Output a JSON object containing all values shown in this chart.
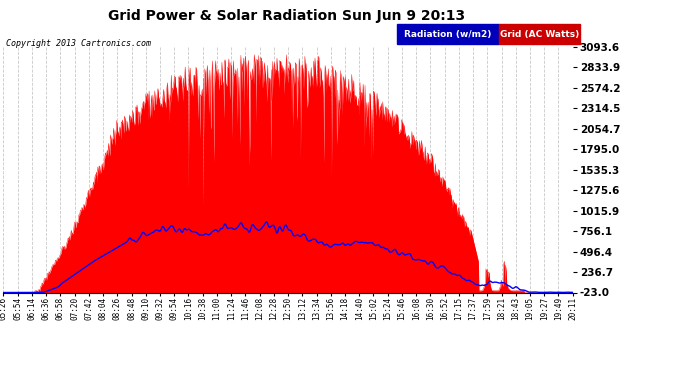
{
  "title": "Grid Power & Solar Radiation Sun Jun 9 20:13",
  "copyright": "Copyright 2013 Cartronics.com",
  "bg_color": "#ffffff",
  "plot_bg_color": "#ffffff",
  "grid_color": "#bbbbbb",
  "yticks": [
    -23.0,
    236.7,
    496.4,
    756.1,
    1015.9,
    1275.6,
    1535.3,
    1795.0,
    2054.7,
    2314.5,
    2574.2,
    2833.9,
    3093.6
  ],
  "ymin": -23.0,
  "ymax": 3093.6,
  "legend_labels": [
    "Radiation (w/m2)",
    "Grid (AC Watts)"
  ],
  "legend_colors": [
    "#0000ff",
    "#ff0000"
  ],
  "x_tick_labels": [
    "05:26",
    "05:54",
    "06:14",
    "06:36",
    "06:58",
    "07:20",
    "07:42",
    "08:04",
    "08:26",
    "08:48",
    "09:10",
    "09:32",
    "09:54",
    "10:16",
    "10:38",
    "11:00",
    "11:24",
    "11:46",
    "12:08",
    "12:28",
    "12:50",
    "13:12",
    "13:34",
    "13:56",
    "14:18",
    "14:40",
    "15:02",
    "15:24",
    "15:46",
    "16:08",
    "16:30",
    "16:52",
    "17:15",
    "17:37",
    "17:59",
    "18:21",
    "18:43",
    "19:05",
    "19:27",
    "19:49",
    "20:11"
  ],
  "red_fill_color": "#ff0000",
  "blue_line_color": "#0000ff",
  "line_width": 1.0
}
